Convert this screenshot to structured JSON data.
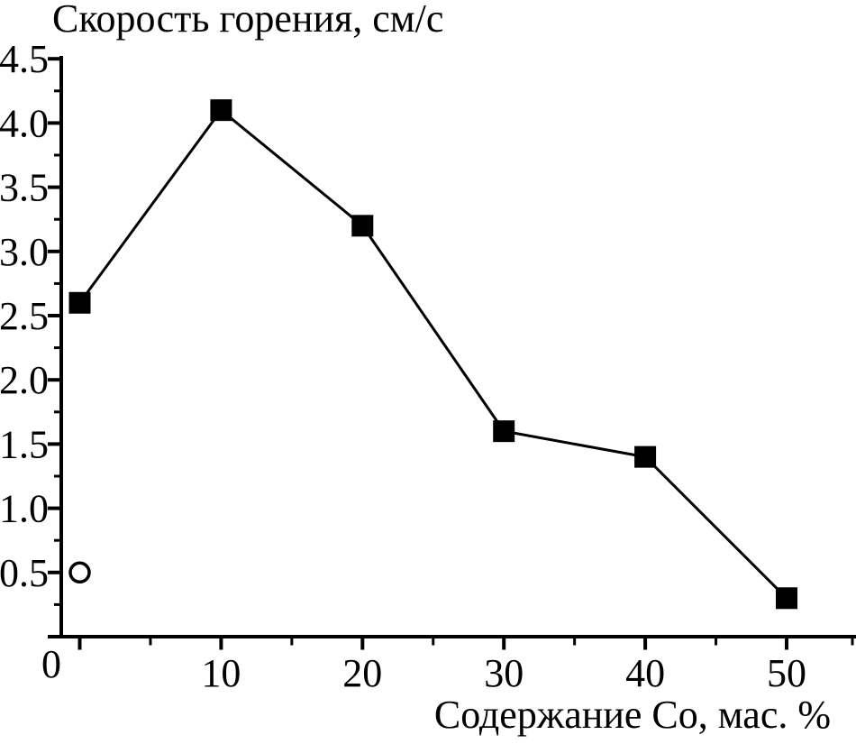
{
  "chart_data": {
    "type": "line",
    "title": "Скорость горения, см/с",
    "xlabel": "Содержание Co, мас. %",
    "ylabel": "Скорость горения, см/с",
    "origin_label": "0",
    "grid": false,
    "legend": "none",
    "xlim": [
      -1.3,
      54.9
    ],
    "ylim": [
      0,
      4.53
    ],
    "x_axis": {
      "major_ticks": [
        0,
        10,
        20,
        30,
        40,
        50
      ],
      "major_labels": [
        "",
        "10",
        "20",
        "30",
        "40",
        "50"
      ],
      "minor_ticks": [
        5,
        15,
        25,
        35,
        45,
        55
      ]
    },
    "y_axis": {
      "major_ticks": [
        0,
        0.5,
        1.0,
        1.5,
        2.0,
        2.5,
        3.0,
        3.5,
        4.0,
        4.5
      ],
      "major_labels": [
        "",
        "0.5",
        "1.0",
        "1.5",
        "2.0",
        "2.5",
        "3.0",
        "3.5",
        "4.0",
        "4.5"
      ],
      "minor_ticks": [
        0.25,
        0.75,
        1.25,
        1.75,
        2.25,
        2.75,
        3.25,
        3.75,
        4.25
      ]
    },
    "series": [
      {
        "name": "filled-square-series",
        "marker": "filled-square",
        "line": true,
        "x": [
          0,
          10,
          20,
          30,
          40,
          50
        ],
        "y": [
          2.6,
          4.1,
          3.2,
          1.6,
          1.4,
          0.3
        ]
      },
      {
        "name": "open-circle-series",
        "marker": "open-circle",
        "line": false,
        "x": [
          0
        ],
        "y": [
          0.5
        ]
      }
    ],
    "colors": {
      "foreground": "#000000",
      "background": "#ffffff"
    }
  }
}
